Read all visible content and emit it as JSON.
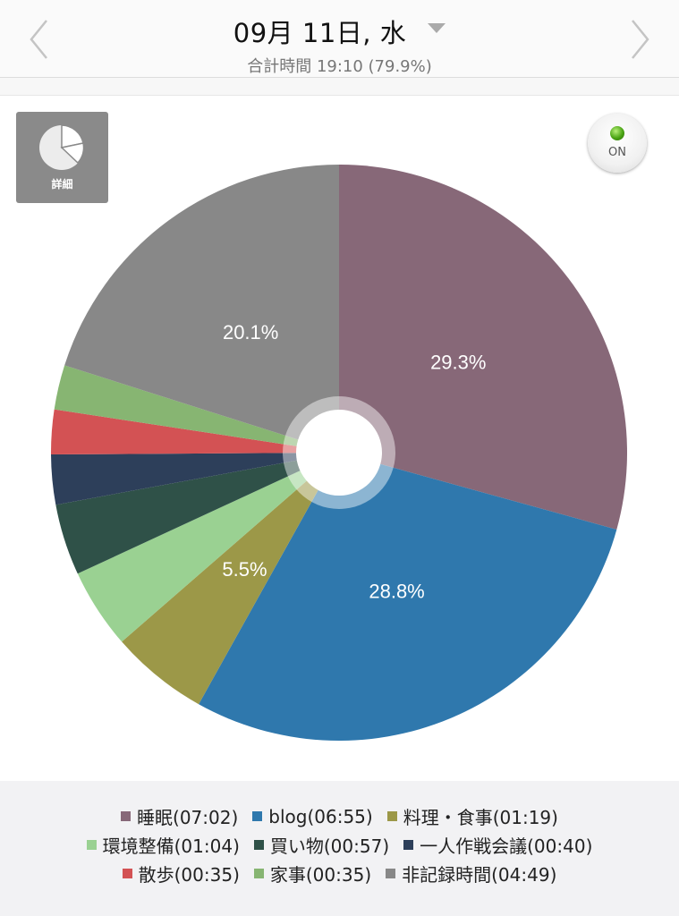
{
  "header": {
    "date": "09月 11日, 水",
    "subtitle": "合計時間 19:10 (79.9%)"
  },
  "controls": {
    "detail_label": "詳細",
    "toggle_label": "ON"
  },
  "chart_data": {
    "type": "pie",
    "title": "",
    "slices": [
      {
        "label": "睡眠(07:02)",
        "value": 29.3,
        "color": "#876878",
        "show_label": true
      },
      {
        "label": "blog(06:55)",
        "value": 28.8,
        "color": "#2f78ad",
        "show_label": true
      },
      {
        "label": "料理・食事(01:19)",
        "value": 5.5,
        "color": "#9c9848",
        "show_label": true
      },
      {
        "label": "環境整備(01:04)",
        "value": 4.5,
        "color": "#9ad192",
        "show_label": false
      },
      {
        "label": "買い物(00:57)",
        "value": 4.0,
        "color": "#2f5148",
        "show_label": false
      },
      {
        "label": "一人作戦会議(00:40)",
        "value": 2.8,
        "color": "#2d3f5a",
        "show_label": false
      },
      {
        "label": "散歩(00:35)",
        "value": 2.5,
        "color": "#d35254",
        "show_label": false
      },
      {
        "label": "家事(00:35)",
        "value": 2.5,
        "color": "#87b572",
        "show_label": false
      },
      {
        "label": "非記録時間(04:49)",
        "value": 20.1,
        "color": "#888888",
        "show_label": true
      }
    ],
    "legend_position": "bottom"
  }
}
